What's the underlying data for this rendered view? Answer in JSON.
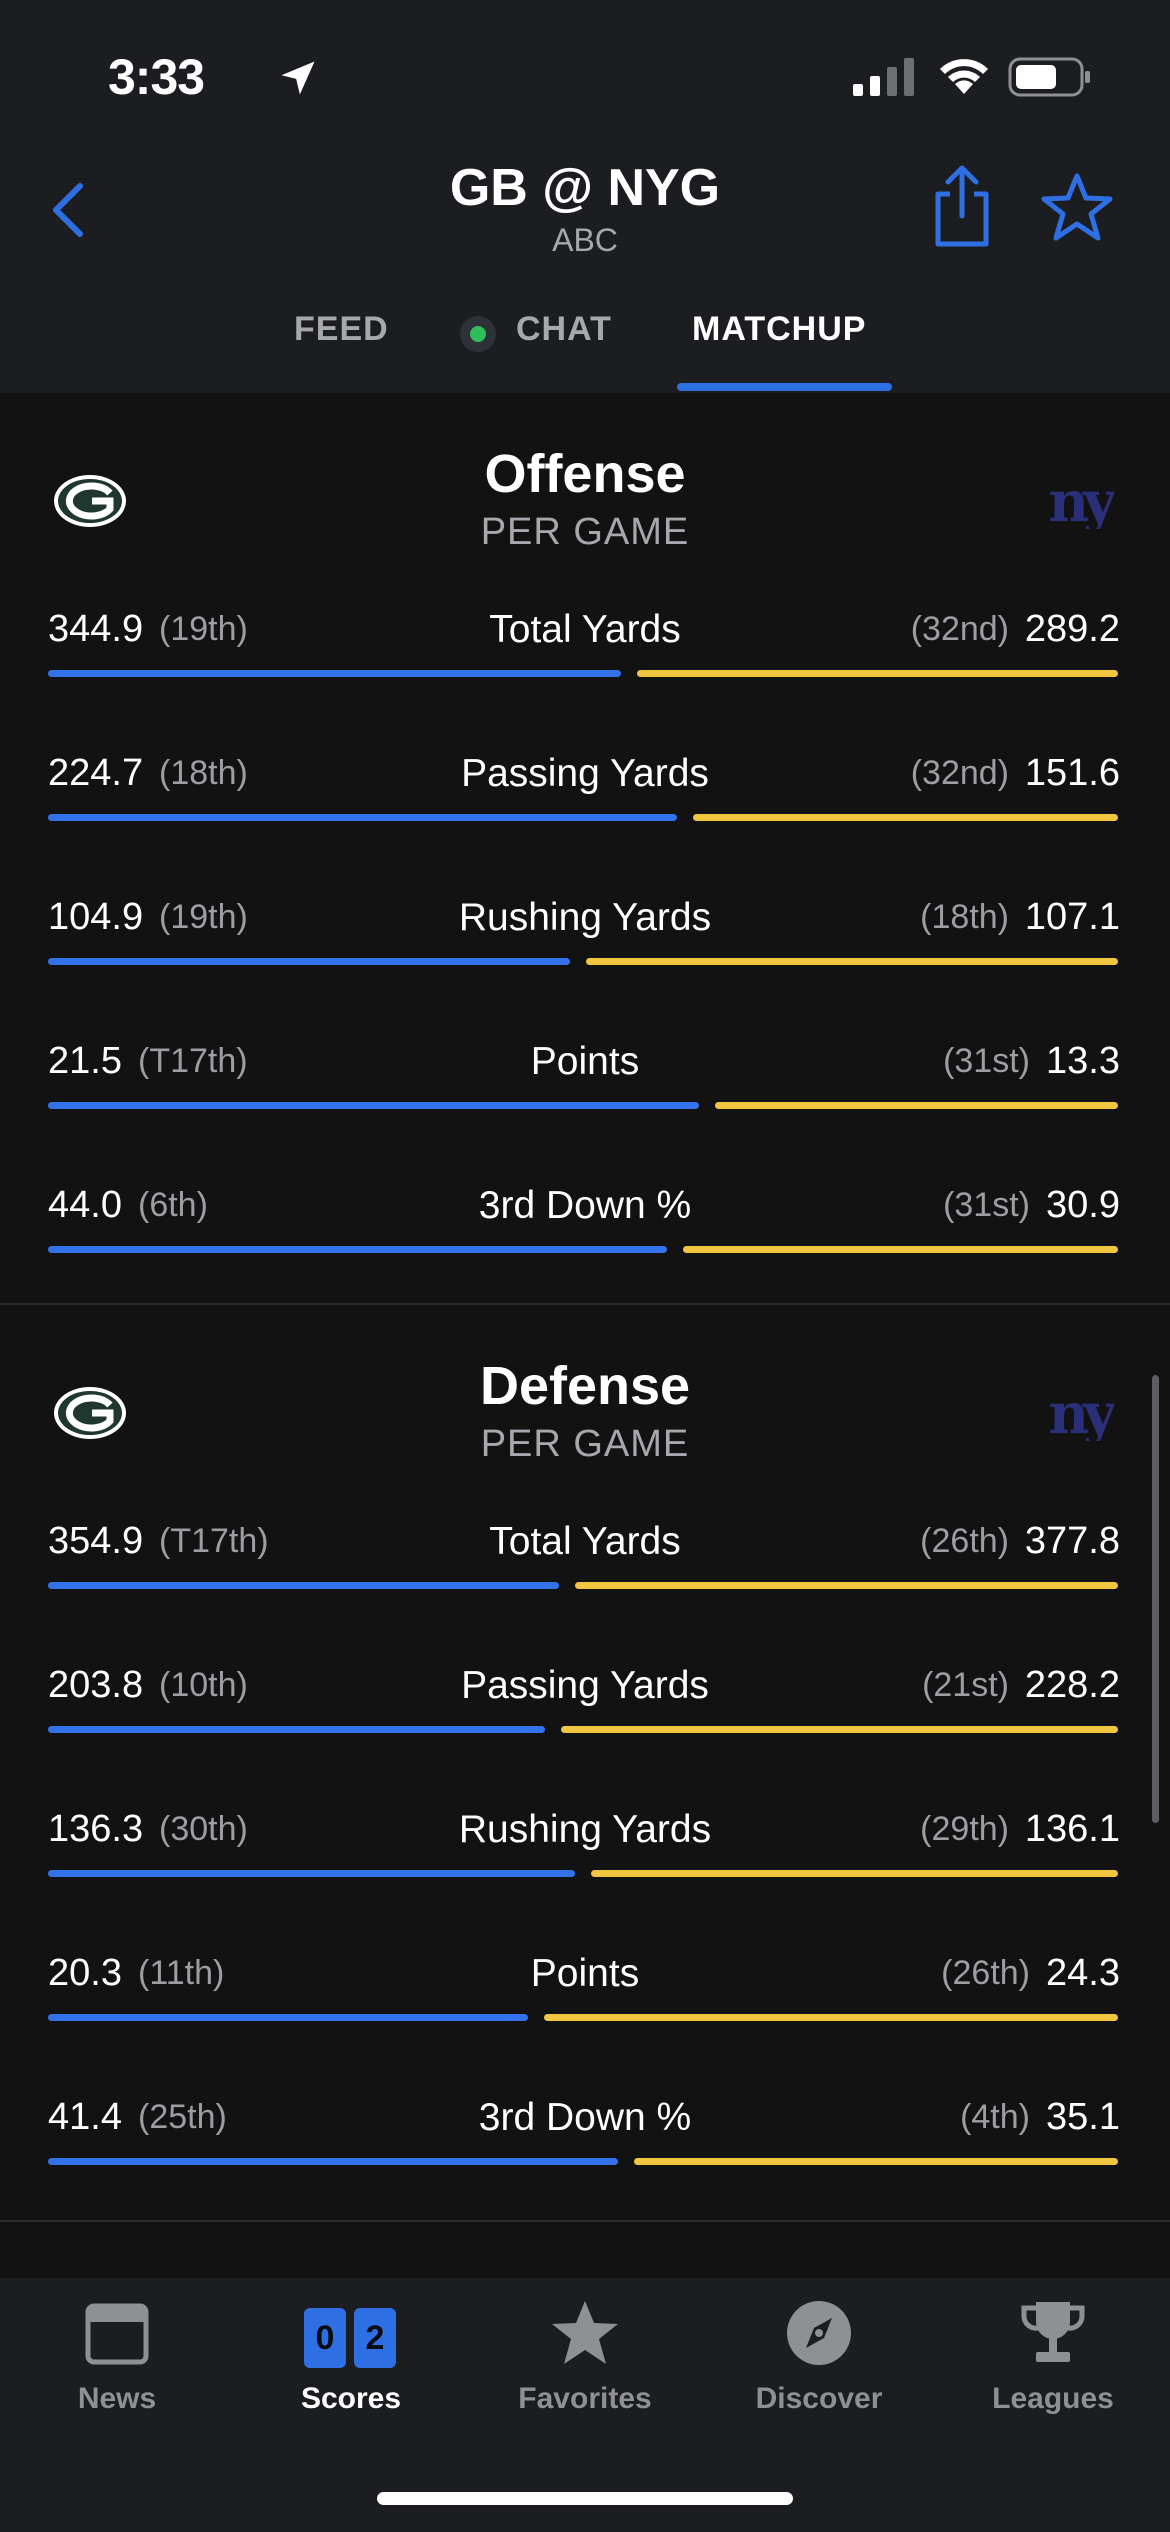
{
  "status": {
    "time": "3:33"
  },
  "header": {
    "title": "GB @ NYG",
    "subtitle": "ABC"
  },
  "tabs": [
    {
      "label": "FEED"
    },
    {
      "label": "CHAT"
    },
    {
      "label": "MATCHUP"
    }
  ],
  "colors": {
    "accent": "#2f6fe4",
    "home_bar": "#3472ec",
    "away_bar": "#f2c640",
    "live_dot": "#2fbf5a"
  },
  "offense": {
    "title": "Offense",
    "subtitle": "PER GAME",
    "rows": [
      {
        "label": "Total Yards",
        "left": "344.9",
        "left_rank": "(19th)",
        "right": "289.2",
        "right_rank": "(32nd)",
        "left_value": 344.9,
        "right_value": 289.2
      },
      {
        "label": "Passing Yards",
        "left": "224.7",
        "left_rank": "(18th)",
        "right": "151.6",
        "right_rank": "(32nd)",
        "left_value": 224.7,
        "right_value": 151.6
      },
      {
        "label": "Rushing Yards",
        "left": "104.9",
        "left_rank": "(19th)",
        "right": "107.1",
        "right_rank": "(18th)",
        "left_value": 104.9,
        "right_value": 107.1
      },
      {
        "label": "Points",
        "left": "21.5",
        "left_rank": "(T17th)",
        "right": "13.3",
        "right_rank": "(31st)",
        "left_value": 21.5,
        "right_value": 13.3
      },
      {
        "label": "3rd Down %",
        "left": "44.0",
        "left_rank": "(6th)",
        "right": "30.9",
        "right_rank": "(31st)",
        "left_value": 44.0,
        "right_value": 30.9
      }
    ]
  },
  "defense": {
    "title": "Defense",
    "subtitle": "PER GAME",
    "rows": [
      {
        "label": "Total Yards",
        "left": "354.9",
        "left_rank": "(T17th)",
        "right": "377.8",
        "right_rank": "(26th)",
        "left_value": 354.9,
        "right_value": 377.8
      },
      {
        "label": "Passing Yards",
        "left": "203.8",
        "left_rank": "(10th)",
        "right": "228.2",
        "right_rank": "(21st)",
        "left_value": 203.8,
        "right_value": 228.2
      },
      {
        "label": "Rushing Yards",
        "left": "136.3",
        "left_rank": "(30th)",
        "right": "136.1",
        "right_rank": "(29th)",
        "left_value": 136.3,
        "right_value": 136.1
      },
      {
        "label": "Points",
        "left": "20.3",
        "left_rank": "(11th)",
        "right": "24.3",
        "right_rank": "(26th)",
        "left_value": 20.3,
        "right_value": 24.3
      },
      {
        "label": "3rd Down %",
        "left": "41.4",
        "left_rank": "(25th)",
        "right": "35.1",
        "right_rank": "(4th)",
        "left_value": 41.4,
        "right_value": 35.1
      }
    ]
  },
  "tabbar": {
    "news": "News",
    "scores": "Scores",
    "scores_digits": [
      "0",
      "2"
    ],
    "favorites": "Favorites",
    "discover": "Discover",
    "leagues": "Leagues"
  }
}
